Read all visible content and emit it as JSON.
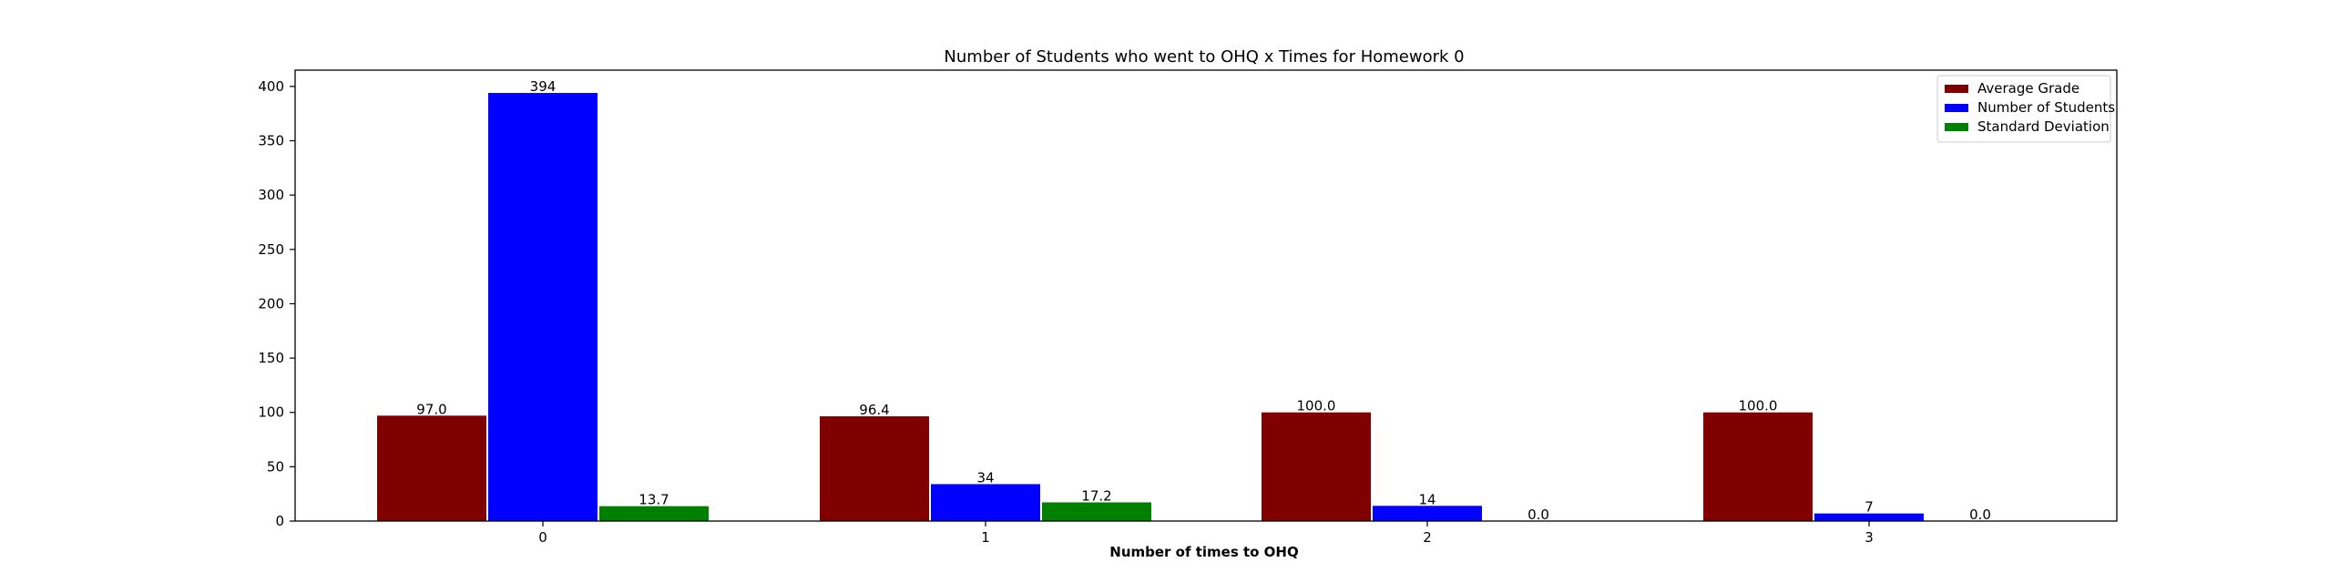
{
  "chart_data": {
    "type": "bar",
    "title": "Number of Students who went to OHQ x Times for Homework 0",
    "xlabel": "Number of times to OHQ",
    "ylabel": "",
    "categories": [
      "0",
      "1",
      "2",
      "3"
    ],
    "ylim": [
      0,
      415
    ],
    "yticks": [
      0,
      50,
      100,
      150,
      200,
      250,
      300,
      350,
      400
    ],
    "grid": false,
    "legend_position": "top-right",
    "series": [
      {
        "name": "Average Grade",
        "color": "#800000",
        "values": [
          97.0,
          96.4,
          100.0,
          100.0
        ],
        "labels": [
          "97.0",
          "96.4",
          "100.0",
          "100.0"
        ]
      },
      {
        "name": "Number of Students",
        "color": "#0000ff",
        "values": [
          394,
          34,
          14,
          7
        ],
        "labels": [
          "394",
          "34",
          "14",
          "7"
        ]
      },
      {
        "name": "Standard Deviation",
        "color": "#008000",
        "values": [
          13.7,
          17.2,
          0.0,
          0.0
        ],
        "labels": [
          "13.7",
          "17.2",
          "0.0",
          "0.0"
        ]
      }
    ]
  }
}
